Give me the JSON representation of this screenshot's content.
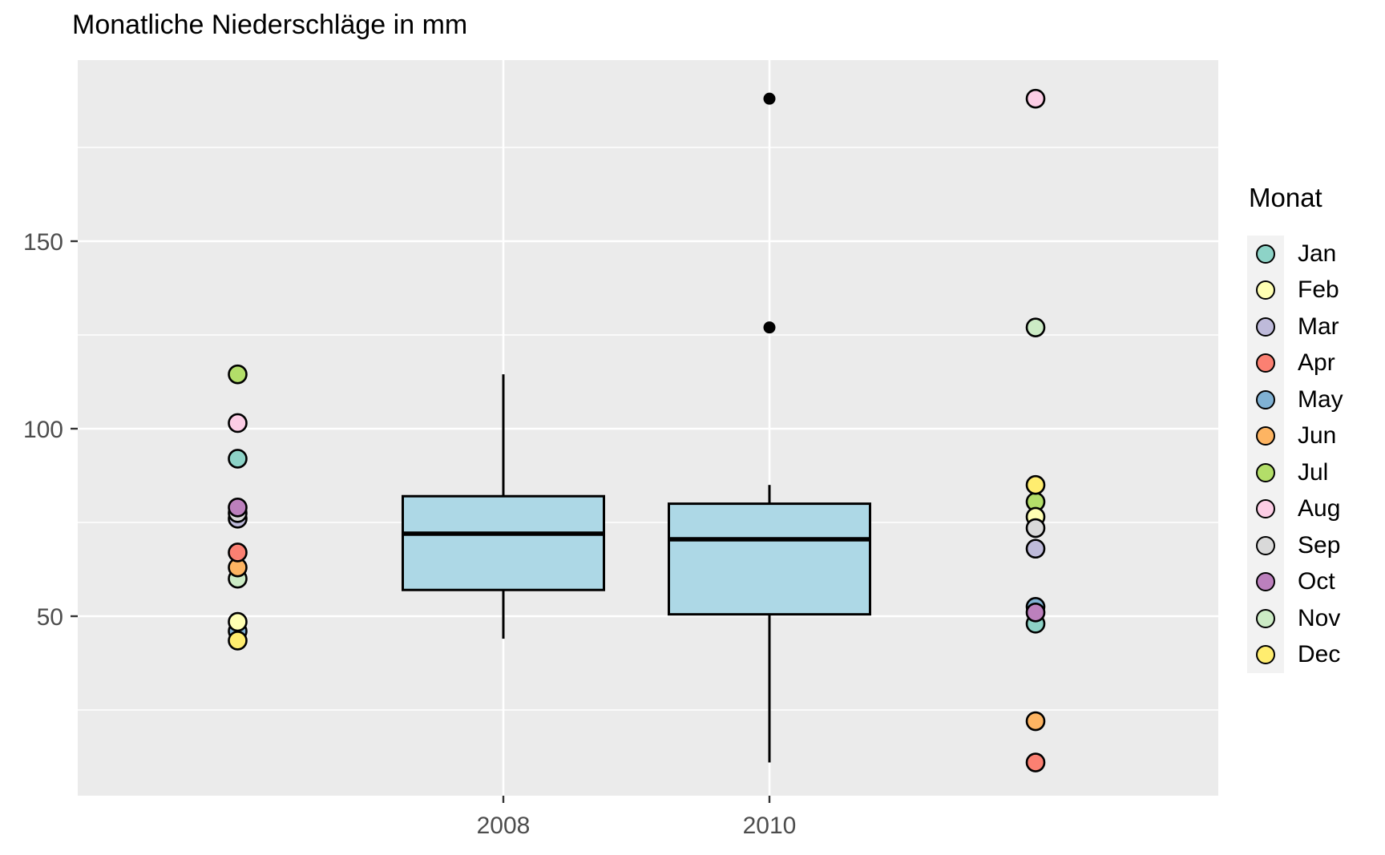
{
  "page": {
    "title": "Monatliche Niederschläge in mm"
  },
  "chart_data": {
    "type": "boxplot",
    "title": "Monatliche Niederschläge in mm",
    "xlabel": "",
    "ylabel": "",
    "categories": [
      "2008",
      "2010"
    ],
    "y_ticks": [
      50,
      100,
      150
    ],
    "y_minor_gridlines": [
      25,
      75,
      125,
      175
    ],
    "ylim": [
      2,
      198
    ],
    "grid": true,
    "panel_bg": "#EBEBEB",
    "gridline_color": "#FFFFFF",
    "axis_text_color": "#4D4D4D",
    "tick_mark_color": "#333333",
    "box_style": {
      "fill": "#ADD8E6",
      "stroke": "#000000"
    },
    "legend_position": "right",
    "legend": {
      "title": "Monat",
      "entries": [
        {
          "label": "Jan",
          "color": "#8DD3C7"
        },
        {
          "label": "Feb",
          "color": "#FFFFB3"
        },
        {
          "label": "Mar",
          "color": "#BEBADA"
        },
        {
          "label": "Apr",
          "color": "#FB8072"
        },
        {
          "label": "May",
          "color": "#80B1D3"
        },
        {
          "label": "Jun",
          "color": "#FDB462"
        },
        {
          "label": "Jul",
          "color": "#B3DE69"
        },
        {
          "label": "Aug",
          "color": "#FCCDE5"
        },
        {
          "label": "Sep",
          "color": "#D9D9D9"
        },
        {
          "label": "Oct",
          "color": "#BC80BD"
        },
        {
          "label": "Nov",
          "color": "#CCEBC5"
        },
        {
          "label": "Dec",
          "color": "#FFED6F"
        }
      ]
    },
    "boxplots": [
      {
        "category": "2008",
        "whisker_low": 44,
        "q1": 57,
        "median": 72,
        "q3": 82,
        "whisker_high": 114.5,
        "outliers": []
      },
      {
        "category": "2010",
        "whisker_low": 11,
        "q1": 50.5,
        "median": 70.5,
        "q3": 80,
        "whisker_high": 85,
        "outliers": [
          188,
          127
        ]
      }
    ],
    "points": [
      {
        "category": "2008",
        "side": "left",
        "values": [
          {
            "month": "Jul",
            "value": 114.5
          },
          {
            "month": "Aug",
            "value": 101.5
          },
          {
            "month": "Jan",
            "value": 92
          },
          {
            "month": "Mar",
            "value": 76
          },
          {
            "month": "Sep",
            "value": 77.5
          },
          {
            "month": "Oct",
            "value": 79
          },
          {
            "month": "Nov",
            "value": 60
          },
          {
            "month": "Jun",
            "value": 63
          },
          {
            "month": "Apr",
            "value": 67
          },
          {
            "month": "May",
            "value": 46
          },
          {
            "month": "Feb",
            "value": 48.5
          },
          {
            "month": "Dec",
            "value": 43.5
          }
        ]
      },
      {
        "category": "2010",
        "side": "right",
        "values": [
          {
            "month": "Aug",
            "value": 188
          },
          {
            "month": "Nov",
            "value": 127
          },
          {
            "month": "Jul",
            "value": 80.5
          },
          {
            "month": "Dec",
            "value": 85
          },
          {
            "month": "Feb",
            "value": 76.5
          },
          {
            "month": "Sep",
            "value": 73.5
          },
          {
            "month": "Mar",
            "value": 68
          },
          {
            "month": "May",
            "value": 52.5
          },
          {
            "month": "Jan",
            "value": 48
          },
          {
            "month": "Oct",
            "value": 51
          },
          {
            "month": "Jun",
            "value": 22
          },
          {
            "month": "Apr",
            "value": 11
          }
        ]
      }
    ]
  }
}
